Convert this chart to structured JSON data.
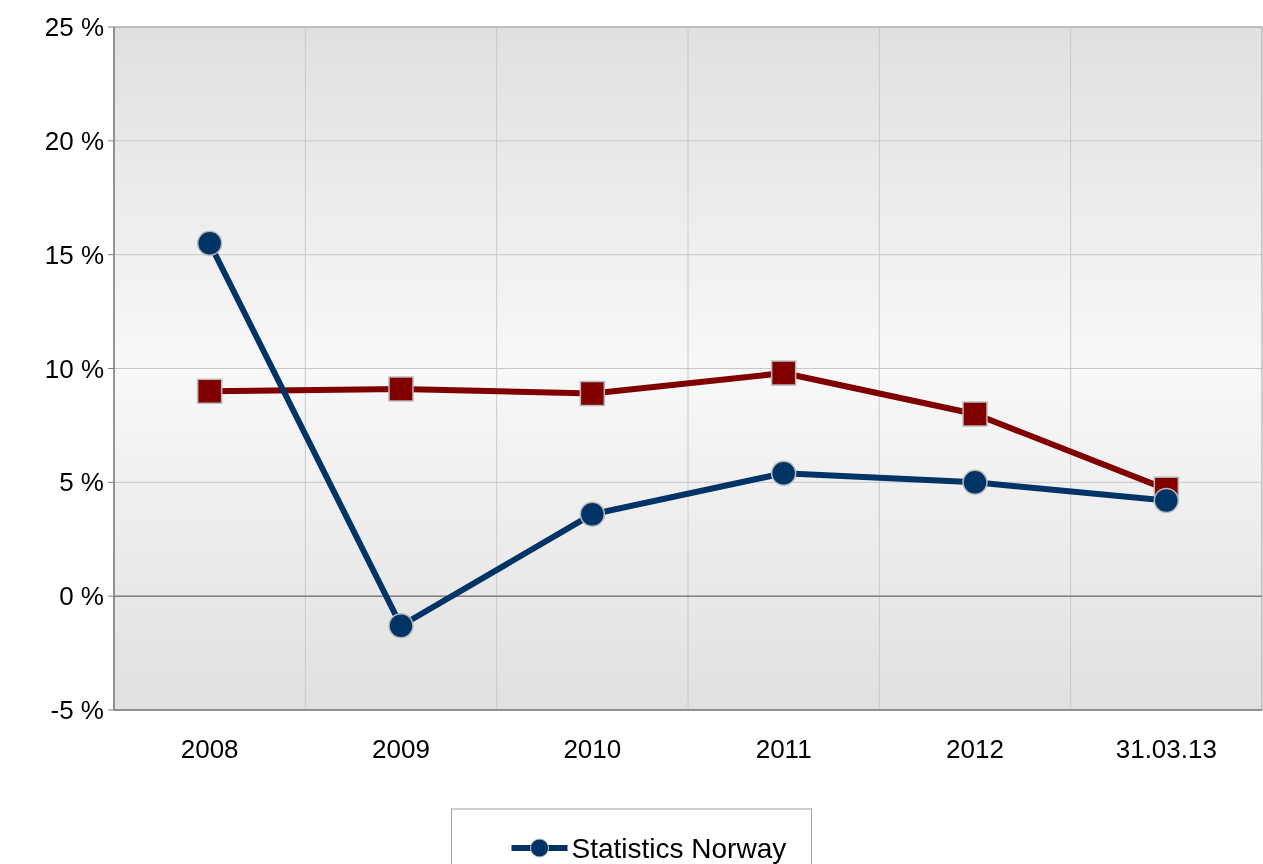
{
  "chart_data": {
    "type": "line",
    "categories": [
      "2008",
      "2009",
      "2010",
      "2011",
      "2012",
      "31.03.13"
    ],
    "series": [
      {
        "name": "Statistics Norway",
        "color": "#003366",
        "marker": "circle",
        "values": [
          15.5,
          -1.3,
          3.6,
          5.4,
          5.0,
          4.2
        ]
      },
      {
        "color": "#800000",
        "marker": "square",
        "values": [
          9.0,
          9.1,
          8.9,
          9.8,
          8.0,
          4.7
        ]
      }
    ],
    "ylim": [
      -5,
      25
    ],
    "yticks": [
      {
        "value": -5,
        "label": "-5 %"
      },
      {
        "value": 0,
        "label": "0 %"
      },
      {
        "value": 5,
        "label": "5 %"
      },
      {
        "value": 10,
        "label": "10 %"
      },
      {
        "value": 15,
        "label": "15 %"
      },
      {
        "value": 20,
        "label": "20 %"
      },
      {
        "value": 25,
        "label": "25 %"
      }
    ],
    "grid": true,
    "legend": "bottom"
  }
}
